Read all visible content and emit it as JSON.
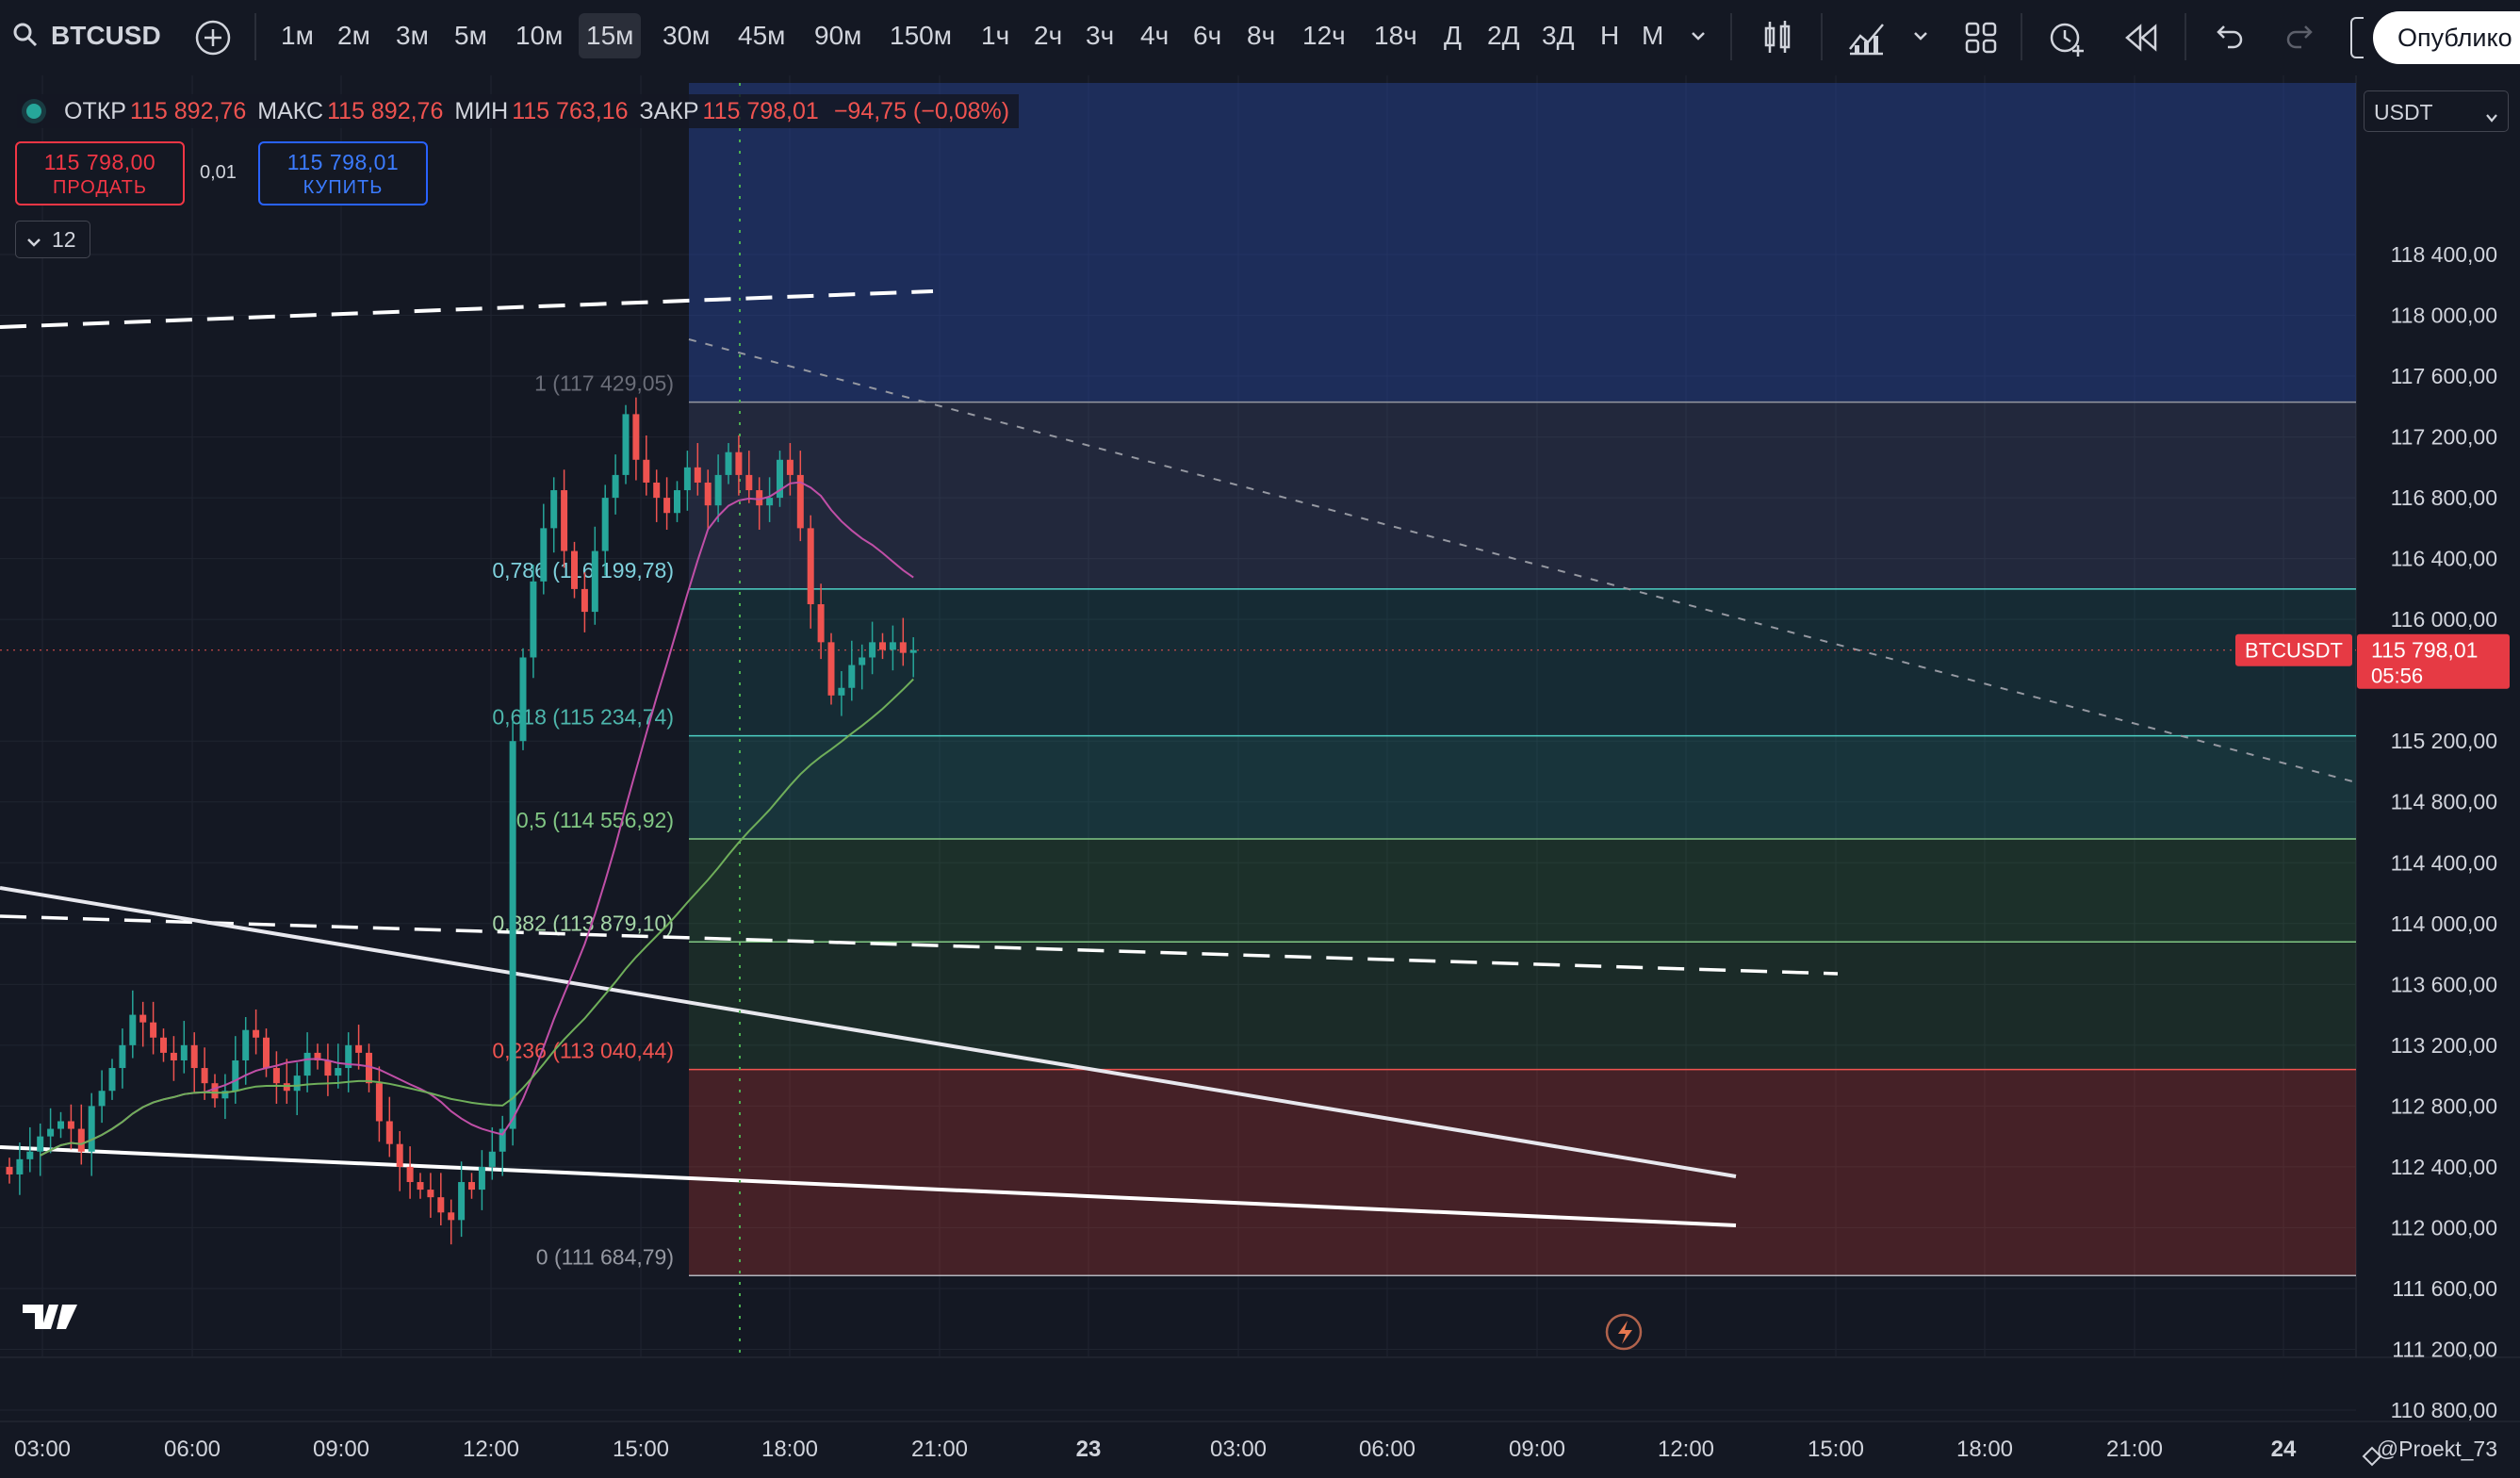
{
  "toolbar": {
    "symbol": "BTCUSD",
    "search_icon": "search-icon",
    "add_icon": "plus-circle-icon",
    "intervals": [
      "1м",
      "2м",
      "3м",
      "5м",
      "10м",
      "15м",
      "30м",
      "45м",
      "90м",
      "150м",
      "1ч",
      "2ч",
      "3ч",
      "4ч",
      "6ч",
      "8ч",
      "12ч",
      "18ч",
      "Д",
      "2Д",
      "3Д",
      "Н",
      "М"
    ],
    "active_interval": "15м",
    "icons": [
      "chevron-down-icon",
      "candles-icon",
      "indicators-icon",
      "chevron-down-icon",
      "layout-icon",
      "alert-icon",
      "replay-icon",
      "undo-icon",
      "redo-icon"
    ],
    "publish_label": "Опублико"
  },
  "legend": {
    "open_label": "ОТКР",
    "open_value": "115 892,76",
    "high_label": "МАКС",
    "high_value": "115 892,76",
    "low_label": "МИН",
    "low_value": "115 763,16",
    "close_label": "ЗАКР",
    "close_value": "115 798,01",
    "change": "−94,75 (−0,08%)"
  },
  "trade": {
    "sell_price": "115 798,00",
    "sell_label": "ПРОДАТЬ",
    "spread": "0,01",
    "buy_price": "115 798,01",
    "buy_label": "КУПИТЬ",
    "indicators_count": "12"
  },
  "currency_select": "USDT",
  "price_axis": {
    "labels": [
      "118 400,00",
      "118 000,00",
      "117 600,00",
      "117 200,00",
      "116 800,00",
      "116 400,00",
      "116 000,00",
      "115 200,00",
      "114 800,00",
      "114 400,00",
      "114 000,00",
      "113 600,00",
      "113 200,00",
      "112 800,00",
      "112 400,00",
      "112 000,00",
      "111 600,00",
      "111 200,00",
      "110 800,00"
    ],
    "current_symbol": "BTCUSDT",
    "current_price": "115 798,01",
    "countdown": "05:56"
  },
  "time_axis": [
    "03:00",
    "06:00",
    "09:00",
    "12:00",
    "15:00",
    "18:00",
    "21:00",
    "23",
    "03:00",
    "06:00",
    "09:00",
    "12:00",
    "15:00",
    "18:00",
    "21:00",
    "24"
  ],
  "fib_levels": [
    {
      "label": "1 (117 429,05)",
      "price": 117429.05
    },
    {
      "label": "0,786 (116 199,78)",
      "price": 116199.78
    },
    {
      "label": "0,618 (115 234,74)",
      "price": 115234.74
    },
    {
      "label": "0,5 (114 556,92)",
      "price": 114556.92
    },
    {
      "label": "0,382 (113 879,10)",
      "price": 113879.1
    },
    {
      "label": "0,236 (113 040,44)",
      "price": 113040.44
    },
    {
      "label": "0 (111 684,79)",
      "price": 111684.79
    }
  ],
  "watermark": "TV",
  "author": "@Proekt_73",
  "colors": {
    "up": "#26a69a",
    "down": "#ef5350",
    "bg": "#141823",
    "buy_blue": "#2962ff",
    "sell_red": "#f23645"
  },
  "chart_data": {
    "type": "candlestick",
    "symbol": "BTCUSDT",
    "interval": "15м",
    "ylim": [
      110600,
      118700
    ],
    "close": [
      112350,
      112450,
      112500,
      112600,
      112650,
      112700,
      112650,
      112500,
      112800,
      112900,
      113050,
      113200,
      113400,
      113350,
      113250,
      113150,
      113100,
      113200,
      113050,
      112950,
      112850,
      112900,
      113100,
      113300,
      113250,
      113050,
      112950,
      112900,
      113000,
      113150,
      113100,
      113000,
      113050,
      113200,
      113150,
      112950,
      112700,
      112550,
      112400,
      112300,
      112250,
      112200,
      112100,
      112050,
      112300,
      112250,
      112400,
      112500,
      112650,
      115200,
      115750,
      116250,
      116600,
      116850,
      116450,
      116200,
      116050,
      116450,
      116800,
      116950,
      117350,
      117050,
      116900,
      116800,
      116700,
      116850,
      117000,
      116900,
      116750,
      116950,
      117100,
      116950,
      116850,
      116750,
      116800,
      117050,
      116950,
      116600,
      116100,
      115850,
      115500,
      115550,
      115700,
      115750,
      115850,
      115800,
      115850,
      115780,
      115798
    ]
  }
}
